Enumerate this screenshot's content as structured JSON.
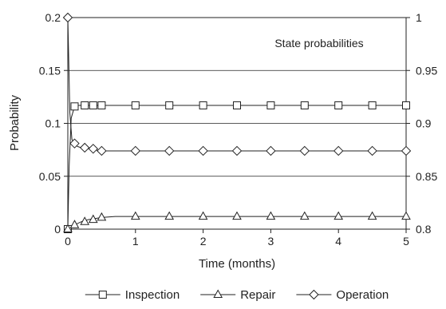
{
  "chart_data": {
    "type": "line",
    "annotation": "State probabilities",
    "xlabel": "Time (months)",
    "ylabel": "Probability",
    "xlim": [
      0,
      5
    ],
    "ylim": [
      0,
      0.2
    ],
    "y2lim": [
      0.8,
      1.0
    ],
    "x_ticks": [
      0,
      1,
      2,
      3,
      4,
      5
    ],
    "y_ticks": [
      0,
      0.05,
      0.1,
      0.15,
      0.2
    ],
    "y_tick_labels": [
      "0",
      "0.05",
      "0.1",
      "0.15",
      "0.2"
    ],
    "y2_ticks": [
      0.8,
      0.85,
      0.9,
      0.95,
      1.0
    ],
    "y2_tick_labels": [
      "0.8",
      "0.85",
      "0.9",
      "0.95",
      "1"
    ],
    "grid": "horizontal",
    "legend_position": "bottom",
    "series": [
      {
        "name": "Inspection",
        "marker": "square",
        "axis": "left",
        "curve": {
          "x": [
            0,
            0.02,
            0.05,
            0.1,
            0.15,
            0.2,
            0.3,
            0.5,
            1,
            5
          ],
          "y": [
            0,
            0.06,
            0.105,
            0.116,
            0.117,
            0.117,
            0.117,
            0.117,
            0.117,
            0.117
          ]
        },
        "markers": {
          "x": [
            0,
            0.1,
            0.25,
            0.375,
            0.5,
            1,
            1.5,
            2,
            2.5,
            3,
            3.5,
            4,
            4.5,
            5
          ],
          "y": [
            0,
            0.116,
            0.117,
            0.117,
            0.117,
            0.117,
            0.117,
            0.117,
            0.117,
            0.117,
            0.117,
            0.117,
            0.117,
            0.117
          ]
        }
      },
      {
        "name": "Repair",
        "marker": "triangle",
        "axis": "left",
        "curve": {
          "x": [
            0,
            0.1,
            0.2,
            0.3,
            0.4,
            0.5,
            0.7,
            1,
            5
          ],
          "y": [
            0,
            0.004,
            0.007,
            0.009,
            0.01,
            0.011,
            0.012,
            0.012,
            0.012
          ]
        },
        "markers": {
          "x": [
            0,
            0.1,
            0.25,
            0.375,
            0.5,
            1,
            1.5,
            2,
            2.5,
            3,
            3.5,
            4,
            4.5,
            5
          ],
          "y": [
            0,
            0.004,
            0.007,
            0.009,
            0.011,
            0.012,
            0.012,
            0.012,
            0.012,
            0.012,
            0.012,
            0.012,
            0.012,
            0.012
          ]
        }
      },
      {
        "name": "Operation",
        "marker": "diamond",
        "axis": "right",
        "curve": {
          "x": [
            0,
            0.03,
            0.06,
            0.1,
            0.15,
            0.2,
            0.3,
            0.4,
            0.5,
            1,
            5
          ],
          "y": [
            1.0,
            0.91,
            0.885,
            0.88,
            0.878,
            0.877,
            0.876,
            0.875,
            0.874,
            0.874,
            0.874
          ]
        },
        "markers": {
          "x": [
            0,
            0.1,
            0.25,
            0.375,
            0.5,
            1,
            1.5,
            2,
            2.5,
            3,
            3.5,
            4,
            4.5,
            5
          ],
          "y": [
            1.0,
            0.881,
            0.877,
            0.876,
            0.874,
            0.874,
            0.874,
            0.874,
            0.874,
            0.874,
            0.874,
            0.874,
            0.874,
            0.874
          ]
        }
      }
    ]
  }
}
